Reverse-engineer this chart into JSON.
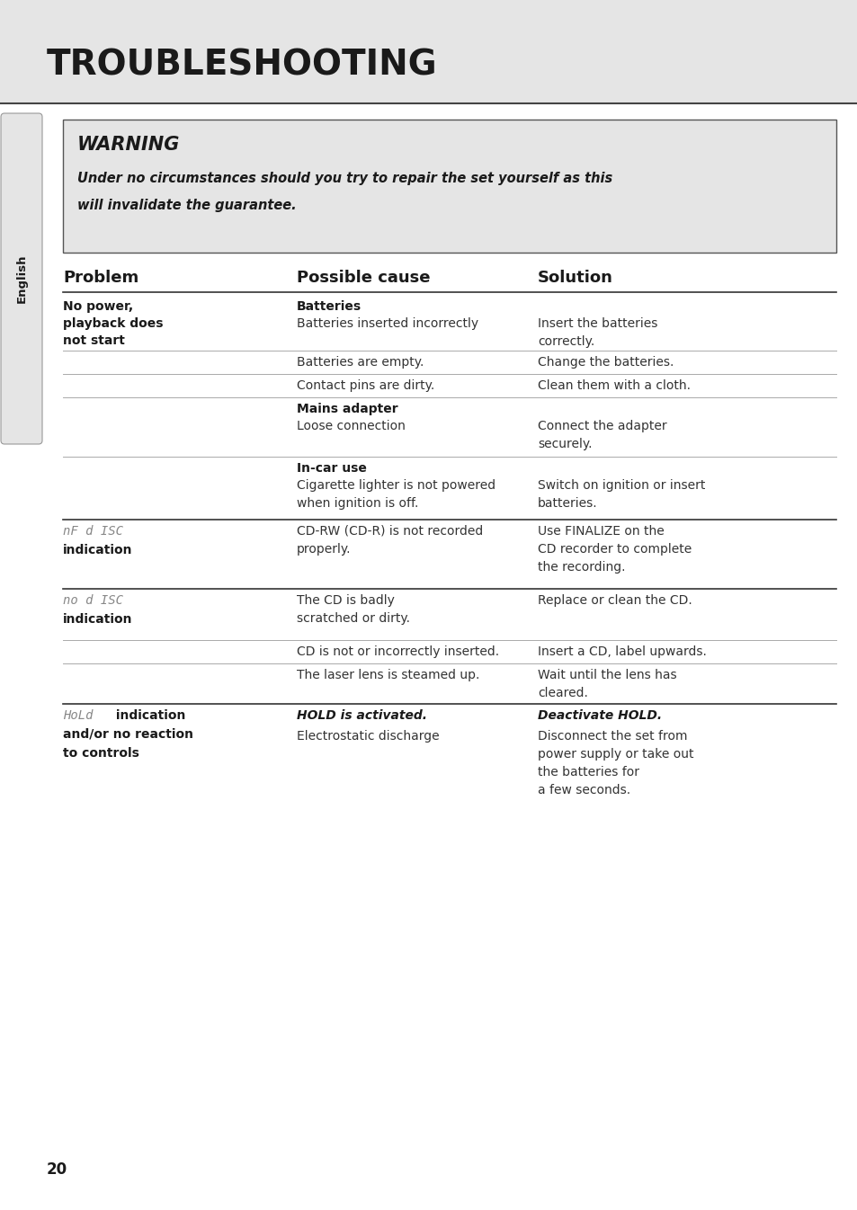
{
  "title": "TROUBLESHOOTING",
  "bg_color": "#e5e5e5",
  "page_bg": "#ffffff",
  "warning_title": "WARNING",
  "warning_text_line1": "Under no circumstances should you try to repair the set yourself as this",
  "warning_text_line2": "will invalidate the guarantee.",
  "col_headers": [
    "Problem",
    "Possible cause",
    "Solution"
  ],
  "page_number": "20",
  "sidebar_text": "English",
  "text_color": "#1a1a1a",
  "gray_text_color": "#888888",
  "body_text_color": "#333333",
  "divider_color_light": "#aaaaaa",
  "divider_color_dark": "#333333"
}
